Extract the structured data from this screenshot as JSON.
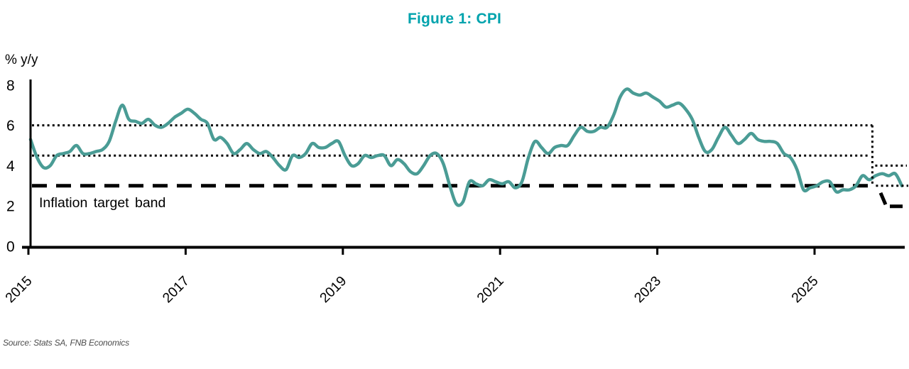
{
  "figure": {
    "title": "Figure 1: CPI",
    "y_axis_unit": "% y/y",
    "band_label": "Inflation target band",
    "source": "Source: Stats SA, FNB Economics"
  },
  "colors": {
    "title_teal": "#00a3ad",
    "cpi_line_teal": "#4a9c95",
    "band_lines_black": "#000000",
    "source_gray": "#4d4d4d"
  },
  "chart_data": {
    "type": "line",
    "title": "Figure 1: CPI",
    "xlabel": "",
    "ylabel": "% y/y",
    "ylim": [
      0,
      8
    ],
    "yticks": [
      0,
      2,
      4,
      6,
      8
    ],
    "xticks": [
      2015,
      2017,
      2019,
      2021,
      2023,
      2025
    ],
    "grid": false,
    "legend": false,
    "annotations": [
      "Inflation target band"
    ],
    "source": "Source: Stats SA, FNB Economics",
    "series": [
      {
        "name": "CPI",
        "unit": "% y/y",
        "frequency": "monthly",
        "start": "2014-12",
        "color": "#4a9c95",
        "values": [
          5.3,
          4.4,
          3.9,
          4.0,
          4.5,
          4.6,
          4.7,
          5.0,
          4.6,
          4.6,
          4.7,
          4.8,
          5.2,
          6.2,
          7.0,
          6.3,
          6.2,
          6.1,
          6.3,
          6.0,
          5.9,
          6.1,
          6.4,
          6.6,
          6.8,
          6.6,
          6.3,
          6.1,
          5.3,
          5.4,
          5.1,
          4.6,
          4.8,
          5.1,
          4.8,
          4.6,
          4.7,
          4.4,
          4.0,
          3.8,
          4.5,
          4.4,
          4.6,
          5.1,
          4.9,
          4.9,
          5.1,
          5.2,
          4.5,
          4.0,
          4.1,
          4.5,
          4.4,
          4.5,
          4.5,
          4.0,
          4.3,
          4.1,
          3.7,
          3.6,
          4.0,
          4.5,
          4.6,
          4.1,
          3.0,
          2.1,
          2.2,
          3.2,
          3.1,
          3.0,
          3.3,
          3.2,
          3.1,
          3.2,
          2.9,
          3.2,
          4.4,
          5.2,
          4.9,
          4.6,
          4.9,
          5.0,
          5.0,
          5.5,
          5.9,
          5.7,
          5.7,
          5.9,
          5.9,
          6.5,
          7.4,
          7.8,
          7.6,
          7.5,
          7.6,
          7.4,
          7.2,
          6.9,
          7.0,
          7.1,
          6.8,
          6.3,
          5.4,
          4.7,
          4.8,
          5.4,
          5.9,
          5.5,
          5.1,
          5.3,
          5.6,
          5.3,
          5.2,
          5.2,
          5.1,
          4.6,
          4.4,
          3.8,
          2.8,
          2.9,
          3.0,
          3.2,
          3.2,
          2.7,
          2.8,
          2.8,
          3.0,
          3.5,
          3.3,
          3.5,
          3.6,
          3.5,
          3.6,
          3.0
        ]
      }
    ],
    "target_bands": {
      "label": "Inflation target band",
      "old": {
        "upper": 6,
        "midpoint": 4.5,
        "lower": 3,
        "upper_style": "dotted",
        "midpoint_style": "dotted",
        "lower_style": "dashed"
      },
      "new": {
        "upper": 4,
        "midpoint": 3,
        "lower": 2,
        "upper_style": "dotted",
        "midpoint_style": "dotted",
        "lower_style": "dashed"
      },
      "transition": "2025-08"
    }
  }
}
